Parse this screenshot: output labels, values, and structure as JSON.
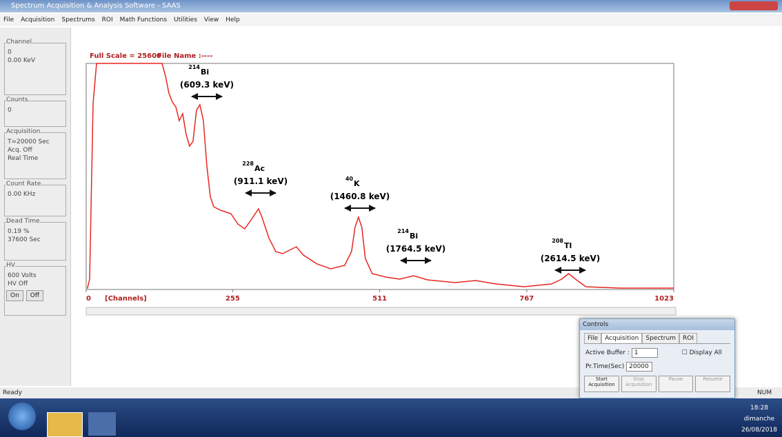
{
  "window": {
    "title": "Spectrum Acquisition & Analysis Software - SAAS",
    "menu": [
      "File",
      "Acquisition",
      "Spectrums",
      "ROI",
      "Math Functions",
      "Utilities",
      "View",
      "Help"
    ],
    "status": "Ready",
    "status_right": "NUM"
  },
  "left_panel": [
    {
      "title": "Channel",
      "lines": [
        "0",
        "0.00  KeV"
      ]
    },
    {
      "title": "Counts",
      "lines": [
        "0"
      ]
    },
    {
      "title": "Acquisition",
      "lines": [
        "T=20000 Sec",
        "Acq. Off",
        "Real Time"
      ]
    },
    {
      "title": "Count Rate",
      "lines": [
        "0.00  KHz"
      ]
    },
    {
      "title": "Dead Time",
      "lines": [
        "0.19  %",
        "37600   Sec"
      ]
    },
    {
      "title": "HV",
      "lines": [
        "600 Volts",
        "HV Off"
      ],
      "buttons": [
        "On",
        "Off"
      ]
    }
  ],
  "chart_data": {
    "type": "line",
    "title": "Full Scale = 25600",
    "subtitle": "File Name :----",
    "x_label": "[Channels]",
    "color": "#e8251f",
    "x": [
      2,
      6,
      12,
      18,
      132,
      138,
      144,
      150,
      156,
      162,
      168,
      174,
      180,
      186,
      192,
      198,
      204,
      210,
      216,
      222,
      234,
      252,
      264,
      276,
      288,
      300,
      306,
      318,
      330,
      342,
      354,
      366,
      378,
      402,
      426,
      450,
      462,
      468,
      474,
      480,
      486,
      498,
      522,
      546,
      570,
      594,
      642,
      678,
      714,
      762,
      810,
      828,
      840,
      852,
      870,
      930,
      1023
    ],
    "values": [
      100,
      1171,
      21073,
      25600,
      25600,
      24195,
      22244,
      21229,
      20683,
      19122,
      19902,
      17561,
      16234,
      16780,
      20293,
      20917,
      19122,
      14049,
      10537,
      9366,
      8976,
      8585,
      7415,
      6868,
      7961,
      9132,
      8195,
      5854,
      4293,
      4059,
      4449,
      4839,
      3902,
      2888,
      2341,
      2732,
      4293,
      7024,
      8195,
      7024,
      3512,
      1795,
      1405,
      1171,
      1561,
      1093,
      780,
      1015,
      624,
      312,
      624,
      1171,
      1795,
      1171,
      312,
      156,
      156
    ],
    "xlim": [
      0,
      1023
    ],
    "xticks": [
      0,
      255,
      511,
      767,
      1023
    ],
    "ylim": [
      0,
      25600
    ],
    "annotations": [
      {
        "mass": "214",
        "element": "Bi",
        "energy": "(609.3 keV)"
      },
      {
        "mass": "228",
        "element": "Ac",
        "energy": "(911.1 keV)"
      },
      {
        "mass": "40",
        "element": "K",
        "energy": "(1460.8 keV)"
      },
      {
        "mass": "214",
        "element": "Bi",
        "energy": "(1764.5 keV)"
      },
      {
        "mass": "208",
        "element": "Tl",
        "energy": "(2614.5 keV)"
      }
    ]
  },
  "controls": {
    "title": "Controls",
    "tabs": [
      "File",
      "Acquisition",
      "Spectrum",
      "ROI"
    ],
    "buffer_label": "Active Buffer :",
    "buffer_value": "1",
    "display_all": "Display All",
    "time_label": "Pr.Time(Sec)",
    "time_value": "20000",
    "buttons": [
      "Start Acquisition",
      "Stop Acquisition",
      "Pause",
      "Resume"
    ]
  },
  "taskbar": {
    "time": "18:28",
    "day": "dimanche",
    "date": "26/08/2018"
  }
}
